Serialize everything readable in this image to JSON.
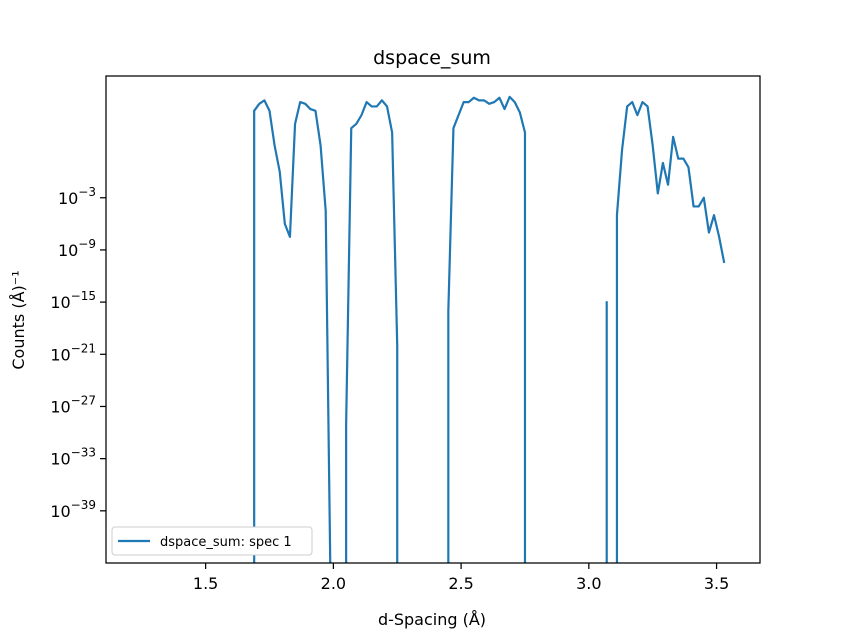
{
  "chart_data": {
    "type": "line",
    "title": "dspace_sum",
    "xlabel": "d-Spacing (Å)",
    "ylabel": "Counts (Å)⁻¹",
    "xlim": [
      1.11,
      3.67
    ],
    "ylim": [
      -45,
      11
    ],
    "y_scale": "log",
    "x_ticks": [
      1.5,
      2.0,
      2.5,
      3.0,
      3.5
    ],
    "x_tick_labels": [
      "1.5",
      "2.0",
      "2.5",
      "3.0",
      "3.5"
    ],
    "y_ticks": [
      {
        "exp": -3,
        "base": "10",
        "sup": "−3"
      },
      {
        "exp": -9,
        "base": "10",
        "sup": "−9"
      },
      {
        "exp": -15,
        "base": "10",
        "sup": "−15"
      },
      {
        "exp": -21,
        "base": "10",
        "sup": "−21"
      },
      {
        "exp": -27,
        "base": "10",
        "sup": "−27"
      },
      {
        "exp": -33,
        "base": "10",
        "sup": "−33"
      },
      {
        "exp": -39,
        "base": "10",
        "sup": "−39"
      }
    ],
    "legend": {
      "position": "lower-left",
      "entries": [
        "dspace_sum: spec 1"
      ]
    },
    "series": [
      {
        "name": "dspace_sum: spec 1",
        "color": "#1f77b4",
        "segments": [
          [
            [
              1.69,
              -100
            ],
            [
              1.69,
              7.0
            ],
            [
              1.71,
              7.8
            ],
            [
              1.73,
              8.2
            ],
            [
              1.75,
              7.0
            ],
            [
              1.77,
              3.0
            ],
            [
              1.79,
              0.0
            ],
            [
              1.81,
              -6.0
            ],
            [
              1.83,
              -7.5
            ],
            [
              1.85,
              5.5
            ],
            [
              1.87,
              8.0
            ],
            [
              1.89,
              7.8
            ],
            [
              1.91,
              7.2
            ],
            [
              1.93,
              7.0
            ],
            [
              1.95,
              3.0
            ],
            [
              1.97,
              -4.5
            ],
            [
              1.99,
              -100
            ]
          ],
          [
            [
              2.05,
              -100
            ],
            [
              2.05,
              -29.0
            ],
            [
              2.07,
              5.0
            ],
            [
              2.09,
              5.5
            ],
            [
              2.11,
              6.5
            ],
            [
              2.13,
              8.0
            ],
            [
              2.15,
              7.5
            ],
            [
              2.17,
              7.5
            ],
            [
              2.19,
              8.2
            ],
            [
              2.21,
              7.5
            ],
            [
              2.23,
              4.5
            ],
            [
              2.25,
              -20.0
            ],
            [
              2.25,
              -100
            ]
          ],
          [
            [
              2.45,
              -100
            ],
            [
              2.45,
              -16.0
            ],
            [
              2.47,
              5.0
            ],
            [
              2.49,
              6.5
            ],
            [
              2.51,
              8.0
            ],
            [
              2.53,
              8.0
            ],
            [
              2.55,
              8.5
            ],
            [
              2.57,
              8.2
            ],
            [
              2.59,
              8.2
            ],
            [
              2.61,
              7.8
            ],
            [
              2.63,
              8.0
            ],
            [
              2.65,
              8.5
            ],
            [
              2.67,
              7.2
            ],
            [
              2.69,
              8.6
            ],
            [
              2.71,
              8.0
            ],
            [
              2.73,
              6.8
            ],
            [
              2.75,
              4.5
            ],
            [
              2.75,
              -12.0
            ],
            [
              2.75,
              -100
            ]
          ],
          [
            [
              3.07,
              -100
            ],
            [
              3.07,
              -15.0
            ],
            [
              3.07,
              -100
            ]
          ],
          [
            [
              3.11,
              -100
            ],
            [
              3.11,
              -5.0
            ],
            [
              3.13,
              2.5
            ],
            [
              3.15,
              7.5
            ],
            [
              3.17,
              8.0
            ],
            [
              3.19,
              6.5
            ],
            [
              3.21,
              8.0
            ],
            [
              3.23,
              7.5
            ],
            [
              3.25,
              3.0
            ],
            [
              3.27,
              -2.5
            ],
            [
              3.29,
              1.0
            ],
            [
              3.31,
              -1.5
            ],
            [
              3.33,
              4.0
            ],
            [
              3.35,
              1.5
            ],
            [
              3.37,
              1.5
            ],
            [
              3.39,
              0.5
            ],
            [
              3.41,
              -4.0
            ],
            [
              3.43,
              -4.0
            ],
            [
              3.45,
              -3.0
            ],
            [
              3.47,
              -7.0
            ],
            [
              3.49,
              -5.0
            ],
            [
              3.51,
              -7.5
            ],
            [
              3.53,
              -10.5
            ]
          ]
        ]
      }
    ]
  }
}
